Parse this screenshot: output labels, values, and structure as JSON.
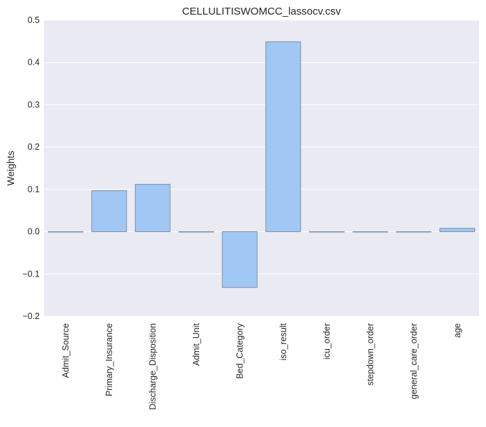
{
  "chart_data": {
    "type": "bar",
    "title": "CELLULITISWOMCC_lassocv.csv",
    "xlabel": "",
    "ylabel": "Weights",
    "categories": [
      "Admit_Source",
      "Primary_Insurance",
      "Discharge_Disposition",
      "Admit_Unit",
      "Bed_Category",
      "iso_result",
      "icu_order",
      "stepdown_order",
      "general_care_order",
      "age"
    ],
    "values": [
      0.0,
      0.097,
      0.112,
      0.0,
      -0.132,
      0.449,
      0.0,
      0.0,
      0.0,
      0.008
    ],
    "ylim": [
      -0.2,
      0.5
    ],
    "yticks": [
      -0.2,
      -0.1,
      0.0,
      0.1,
      0.2,
      0.3,
      0.4,
      0.5
    ],
    "ytick_labels": [
      "−0.2",
      "−0.1",
      "0.0",
      "0.1",
      "0.2",
      "0.3",
      "0.4",
      "0.5"
    ],
    "grid": true,
    "colors": {
      "bar_fill": "#a1c7f4",
      "bar_edge": "#7d8fa3",
      "plot_bg": "#eaeaf2",
      "grid": "#ffffff",
      "text": "#262626"
    }
  }
}
